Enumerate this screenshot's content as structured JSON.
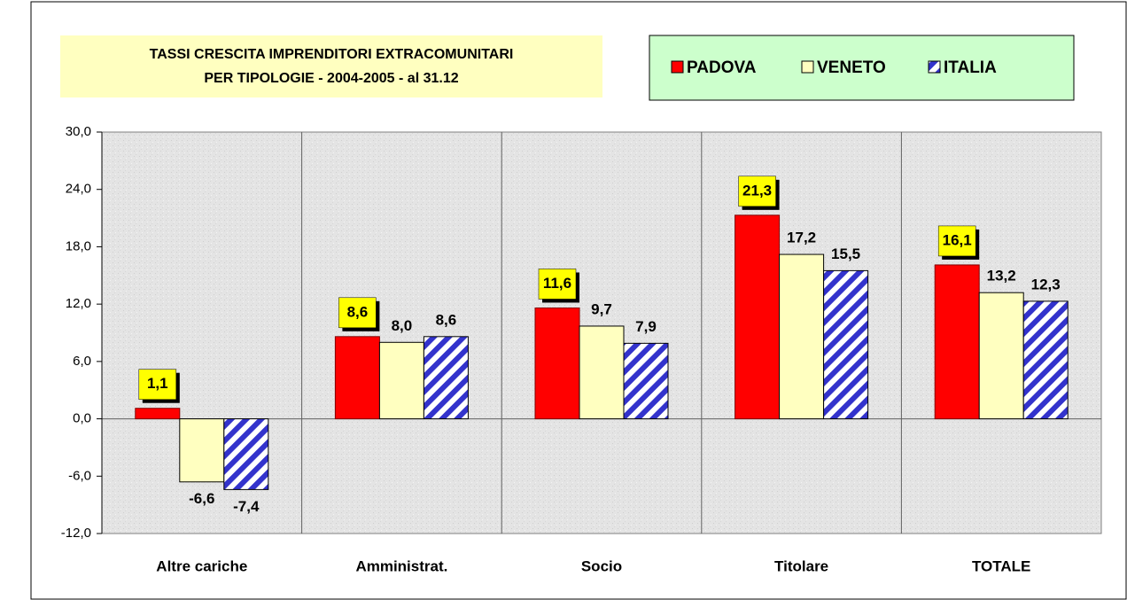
{
  "chart_data": {
    "type": "bar",
    "title": [
      "TASSI CRESCITA IMPRENDITORI EXTRACOMUNITARI",
      "PER TIPOLOGIE - 2004-2005 - al 31.12"
    ],
    "categories": [
      "Altre cariche",
      "Amministrat.",
      "Socio",
      "Titolare",
      "TOTALE"
    ],
    "series": [
      {
        "name": "PADOVA",
        "color": "#ff0000",
        "values": [
          1.1,
          8.6,
          11.6,
          21.3,
          16.1
        ],
        "value_labels": [
          "1,1",
          "8,6",
          "11,6",
          "21,3",
          "16,1"
        ]
      },
      {
        "name": "VENETO",
        "color": "#ffffc0",
        "values": [
          -6.6,
          8.0,
          9.7,
          17.2,
          13.2
        ],
        "value_labels": [
          "-6,6",
          "8,0",
          "9,7",
          "17,2",
          "13,2"
        ]
      },
      {
        "name": "ITALIA",
        "color": "#3333cc",
        "pattern": "hatch",
        "values": [
          -7.4,
          8.6,
          7.9,
          15.5,
          12.3
        ],
        "value_labels": [
          "-7,4",
          "8,6",
          "7,9",
          "15,5",
          "12,3"
        ]
      }
    ],
    "ylim": [
      -12,
      30
    ],
    "yticks": [
      {
        "value": -12,
        "label": "-12,0"
      },
      {
        "value": -6,
        "label": "-6,0"
      },
      {
        "value": 0,
        "label": "0,0"
      },
      {
        "value": 6,
        "label": "6,0"
      },
      {
        "value": 12,
        "label": "12,0"
      },
      {
        "value": 18,
        "label": "18,0"
      },
      {
        "value": 24,
        "label": "24,0"
      },
      {
        "value": 30,
        "label": "30,0"
      }
    ],
    "legend": "top-right"
  }
}
